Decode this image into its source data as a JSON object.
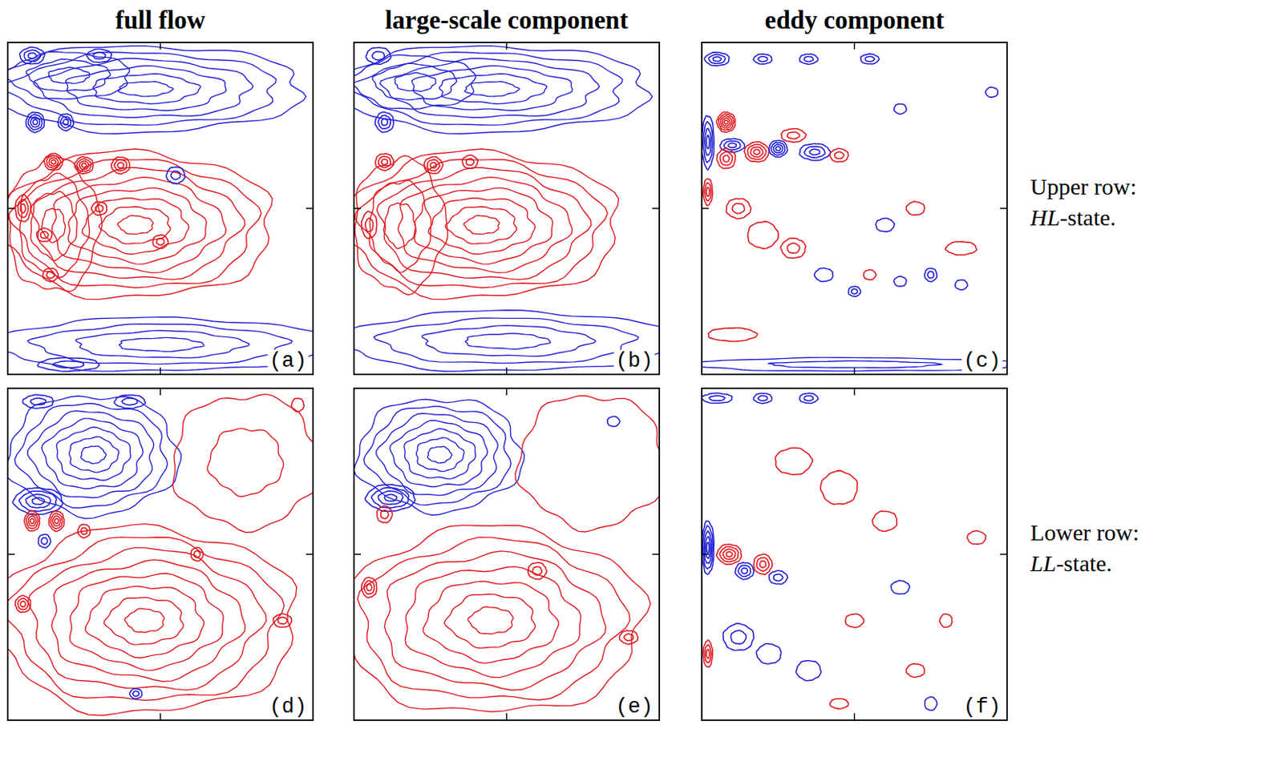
{
  "chart_data": [
    {
      "type": "contour",
      "title": "full flow",
      "panel_label": "(a)",
      "xlim": [
        0,
        1
      ],
      "ylim": [
        0,
        1
      ],
      "xticks": [
        0.5
      ],
      "yticks": [
        0.5
      ],
      "tick_labels": false,
      "contour_interval": 0.15,
      "colors": [
        "#1f1fd8",
        "#e0161c"
      ],
      "features": [
        {
          "x": 0.45,
          "y": 0.86,
          "rx": 0.52,
          "ry": 0.13,
          "value": -0.9
        },
        {
          "x": 0.2,
          "y": 0.9,
          "rx": 0.2,
          "ry": 0.07,
          "value": -0.45
        },
        {
          "x": 0.42,
          "y": 0.45,
          "rx": 0.45,
          "ry": 0.22,
          "value": 1.2
        },
        {
          "x": 0.15,
          "y": 0.45,
          "rx": 0.15,
          "ry": 0.2,
          "value": 0.6
        },
        {
          "x": 0.5,
          "y": 0.09,
          "rx": 0.55,
          "ry": 0.08,
          "value": -0.6
        },
        {
          "x": 0.09,
          "y": 0.76,
          "rx": 0.03,
          "ry": 0.03,
          "value": -0.6
        },
        {
          "x": 0.19,
          "y": 0.76,
          "rx": 0.025,
          "ry": 0.025,
          "value": -0.45
        },
        {
          "x": 0.15,
          "y": 0.64,
          "rx": 0.03,
          "ry": 0.025,
          "value": 0.6
        },
        {
          "x": 0.25,
          "y": 0.63,
          "rx": 0.03,
          "ry": 0.025,
          "value": 0.6
        },
        {
          "x": 0.37,
          "y": 0.63,
          "rx": 0.03,
          "ry": 0.025,
          "value": 0.45
        },
        {
          "x": 0.55,
          "y": 0.6,
          "rx": 0.03,
          "ry": 0.025,
          "value": -0.3
        },
        {
          "x": 0.05,
          "y": 0.5,
          "rx": 0.025,
          "ry": 0.04,
          "value": 0.45
        },
        {
          "x": 0.12,
          "y": 0.42,
          "rx": 0.025,
          "ry": 0.02,
          "value": 0.3
        },
        {
          "x": 0.3,
          "y": 0.5,
          "rx": 0.025,
          "ry": 0.02,
          "value": 0.3
        },
        {
          "x": 0.14,
          "y": 0.3,
          "rx": 0.025,
          "ry": 0.02,
          "value": 0.3
        },
        {
          "x": 0.08,
          "y": 0.96,
          "rx": 0.04,
          "ry": 0.025,
          "value": -0.45
        },
        {
          "x": 0.3,
          "y": 0.96,
          "rx": 0.04,
          "ry": 0.02,
          "value": -0.3
        },
        {
          "x": 0.2,
          "y": 0.03,
          "rx": 0.1,
          "ry": 0.02,
          "value": -0.3
        },
        {
          "x": 0.5,
          "y": 0.4,
          "rx": 0.025,
          "ry": 0.02,
          "value": 0.3
        }
      ]
    },
    {
      "type": "contour",
      "title": "large-scale component",
      "panel_label": "(b)",
      "xlim": [
        0,
        1
      ],
      "ylim": [
        0,
        1
      ],
      "xticks": [
        0.5
      ],
      "yticks": [
        0.5
      ],
      "tick_labels": false,
      "contour_interval": 0.15,
      "colors": [
        "#1f1fd8",
        "#e0161c"
      ],
      "features": [
        {
          "x": 0.45,
          "y": 0.86,
          "rx": 0.52,
          "ry": 0.13,
          "value": -0.9
        },
        {
          "x": 0.2,
          "y": 0.88,
          "rx": 0.2,
          "ry": 0.08,
          "value": -0.45
        },
        {
          "x": 0.42,
          "y": 0.45,
          "rx": 0.45,
          "ry": 0.22,
          "value": 1.2
        },
        {
          "x": 0.15,
          "y": 0.45,
          "rx": 0.15,
          "ry": 0.2,
          "value": 0.45
        },
        {
          "x": 0.5,
          "y": 0.1,
          "rx": 0.55,
          "ry": 0.09,
          "value": -0.6
        },
        {
          "x": 0.1,
          "y": 0.76,
          "rx": 0.03,
          "ry": 0.03,
          "value": -0.45
        },
        {
          "x": 0.1,
          "y": 0.64,
          "rx": 0.03,
          "ry": 0.025,
          "value": 0.45
        },
        {
          "x": 0.26,
          "y": 0.63,
          "rx": 0.03,
          "ry": 0.025,
          "value": 0.45
        },
        {
          "x": 0.38,
          "y": 0.64,
          "rx": 0.025,
          "ry": 0.02,
          "value": 0.3
        },
        {
          "x": 0.05,
          "y": 0.45,
          "rx": 0.025,
          "ry": 0.04,
          "value": 0.3
        },
        {
          "x": 0.08,
          "y": 0.96,
          "rx": 0.04,
          "ry": 0.025,
          "value": -0.3
        }
      ]
    },
    {
      "type": "contour",
      "title": "eddy component",
      "panel_label": "(c)",
      "annotations": [
        "Upper row:",
        "HL-state."
      ],
      "xlim": [
        0,
        1
      ],
      "ylim": [
        0,
        1
      ],
      "xticks": [
        0.5
      ],
      "yticks": [
        0.5
      ],
      "tick_labels": false,
      "contour_interval": 0.15,
      "colors": [
        "#1f1fd8",
        "#e0161c"
      ],
      "features": [
        {
          "x": 0.08,
          "y": 0.76,
          "rx": 0.03,
          "ry": 0.03,
          "value": 0.75
        },
        {
          "x": 0.05,
          "y": 0.95,
          "rx": 0.04,
          "ry": 0.02,
          "value": -0.45
        },
        {
          "x": 0.2,
          "y": 0.95,
          "rx": 0.03,
          "ry": 0.015,
          "value": -0.3
        },
        {
          "x": 0.35,
          "y": 0.95,
          "rx": 0.03,
          "ry": 0.015,
          "value": -0.3
        },
        {
          "x": 0.55,
          "y": 0.95,
          "rx": 0.03,
          "ry": 0.015,
          "value": -0.3
        },
        {
          "x": 0.02,
          "y": 0.7,
          "rx": 0.02,
          "ry": 0.08,
          "value": -0.6
        },
        {
          "x": 0.1,
          "y": 0.69,
          "rx": 0.04,
          "ry": 0.02,
          "value": -0.45
        },
        {
          "x": 0.18,
          "y": 0.67,
          "rx": 0.04,
          "ry": 0.03,
          "value": 0.6
        },
        {
          "x": 0.08,
          "y": 0.65,
          "rx": 0.03,
          "ry": 0.03,
          "value": 0.45
        },
        {
          "x": 0.25,
          "y": 0.68,
          "rx": 0.03,
          "ry": 0.025,
          "value": -0.6
        },
        {
          "x": 0.37,
          "y": 0.67,
          "rx": 0.05,
          "ry": 0.025,
          "value": -0.45
        },
        {
          "x": 0.3,
          "y": 0.72,
          "rx": 0.04,
          "ry": 0.02,
          "value": 0.3
        },
        {
          "x": 0.45,
          "y": 0.66,
          "rx": 0.03,
          "ry": 0.02,
          "value": 0.3
        },
        {
          "x": 0.02,
          "y": 0.55,
          "rx": 0.015,
          "ry": 0.04,
          "value": 0.45
        },
        {
          "x": 0.12,
          "y": 0.5,
          "rx": 0.04,
          "ry": 0.03,
          "value": 0.3
        },
        {
          "x": 0.2,
          "y": 0.42,
          "rx": 0.05,
          "ry": 0.04,
          "value": 0.15
        },
        {
          "x": 0.3,
          "y": 0.38,
          "rx": 0.04,
          "ry": 0.03,
          "value": 0.3
        },
        {
          "x": 0.4,
          "y": 0.3,
          "rx": 0.03,
          "ry": 0.02,
          "value": -0.15
        },
        {
          "x": 0.5,
          "y": 0.25,
          "rx": 0.02,
          "ry": 0.015,
          "value": -0.3
        },
        {
          "x": 0.55,
          "y": 0.3,
          "rx": 0.02,
          "ry": 0.015,
          "value": 0.15
        },
        {
          "x": 0.65,
          "y": 0.28,
          "rx": 0.02,
          "ry": 0.015,
          "value": -0.15
        },
        {
          "x": 0.75,
          "y": 0.3,
          "rx": 0.02,
          "ry": 0.02,
          "value": -0.3
        },
        {
          "x": 0.85,
          "y": 0.27,
          "rx": 0.02,
          "ry": 0.015,
          "value": -0.15
        },
        {
          "x": 0.6,
          "y": 0.45,
          "rx": 0.03,
          "ry": 0.02,
          "value": -0.15
        },
        {
          "x": 0.7,
          "y": 0.5,
          "rx": 0.03,
          "ry": 0.02,
          "value": 0.15
        },
        {
          "x": 0.85,
          "y": 0.38,
          "rx": 0.05,
          "ry": 0.02,
          "value": 0.15
        },
        {
          "x": 0.1,
          "y": 0.12,
          "rx": 0.08,
          "ry": 0.02,
          "value": 0.15
        },
        {
          "x": 0.5,
          "y": 0.03,
          "rx": 0.55,
          "ry": 0.02,
          "value": -0.3
        },
        {
          "x": 0.95,
          "y": 0.85,
          "rx": 0.02,
          "ry": 0.015,
          "value": -0.15
        },
        {
          "x": 0.65,
          "y": 0.8,
          "rx": 0.02,
          "ry": 0.015,
          "value": -0.15
        }
      ]
    },
    {
      "type": "contour",
      "panel_label": "(d)",
      "xlim": [
        0,
        1
      ],
      "ylim": [
        0,
        1
      ],
      "xticks": [
        0.5
      ],
      "yticks": [
        0.5
      ],
      "tick_labels": false,
      "contour_interval": 0.15,
      "colors": [
        "#1f1fd8",
        "#e0161c"
      ],
      "features": [
        {
          "x": 0.28,
          "y": 0.8,
          "rx": 0.28,
          "ry": 0.18,
          "value": -1.05
        },
        {
          "x": 0.1,
          "y": 0.66,
          "rx": 0.08,
          "ry": 0.04,
          "value": -0.6
        },
        {
          "x": 0.45,
          "y": 0.3,
          "rx": 0.5,
          "ry": 0.28,
          "value": 1.2
        },
        {
          "x": 0.78,
          "y": 0.78,
          "rx": 0.24,
          "ry": 0.2,
          "value": 0.3
        },
        {
          "x": 0.08,
          "y": 0.6,
          "rx": 0.025,
          "ry": 0.03,
          "value": 0.6
        },
        {
          "x": 0.16,
          "y": 0.6,
          "rx": 0.025,
          "ry": 0.03,
          "value": 0.6
        },
        {
          "x": 0.25,
          "y": 0.57,
          "rx": 0.02,
          "ry": 0.02,
          "value": 0.3
        },
        {
          "x": 0.12,
          "y": 0.54,
          "rx": 0.02,
          "ry": 0.02,
          "value": -0.3
        },
        {
          "x": 0.05,
          "y": 0.35,
          "rx": 0.025,
          "ry": 0.025,
          "value": 0.45
        },
        {
          "x": 0.1,
          "y": 0.96,
          "rx": 0.05,
          "ry": 0.02,
          "value": -0.3
        },
        {
          "x": 0.4,
          "y": 0.96,
          "rx": 0.05,
          "ry": 0.02,
          "value": -0.3
        },
        {
          "x": 0.62,
          "y": 0.5,
          "rx": 0.02,
          "ry": 0.02,
          "value": 0.3
        },
        {
          "x": 0.9,
          "y": 0.3,
          "rx": 0.03,
          "ry": 0.02,
          "value": 0.3
        },
        {
          "x": 0.42,
          "y": 0.08,
          "rx": 0.02,
          "ry": 0.015,
          "value": -0.3
        },
        {
          "x": 0.95,
          "y": 0.95,
          "rx": 0.02,
          "ry": 0.02,
          "value": 0.15
        }
      ]
    },
    {
      "type": "contour",
      "panel_label": "(e)",
      "xlim": [
        0,
        1
      ],
      "ylim": [
        0,
        1
      ],
      "xticks": [
        0.5
      ],
      "yticks": [
        0.5
      ],
      "tick_labels": false,
      "contour_interval": 0.15,
      "colors": [
        "#1f1fd8",
        "#e0161c"
      ],
      "features": [
        {
          "x": 0.28,
          "y": 0.8,
          "rx": 0.27,
          "ry": 0.17,
          "value": -1.05
        },
        {
          "x": 0.12,
          "y": 0.67,
          "rx": 0.08,
          "ry": 0.04,
          "value": -0.6
        },
        {
          "x": 0.45,
          "y": 0.3,
          "rx": 0.5,
          "ry": 0.28,
          "value": 1.05
        },
        {
          "x": 0.78,
          "y": 0.78,
          "rx": 0.24,
          "ry": 0.2,
          "value": 0.15
        },
        {
          "x": 0.1,
          "y": 0.62,
          "rx": 0.025,
          "ry": 0.025,
          "value": 0.3
        },
        {
          "x": 0.05,
          "y": 0.4,
          "rx": 0.025,
          "ry": 0.03,
          "value": 0.45
        },
        {
          "x": 0.9,
          "y": 0.25,
          "rx": 0.03,
          "ry": 0.02,
          "value": 0.3
        },
        {
          "x": 0.6,
          "y": 0.45,
          "rx": 0.03,
          "ry": 0.025,
          "value": 0.3
        },
        {
          "x": 0.85,
          "y": 0.9,
          "rx": 0.02,
          "ry": 0.015,
          "value": -0.15
        }
      ]
    },
    {
      "type": "contour",
      "panel_label": "(f)",
      "annotations": [
        "Lower row:",
        "LL-state."
      ],
      "xlim": [
        0,
        1
      ],
      "ylim": [
        0,
        1
      ],
      "xticks": [
        0.5
      ],
      "yticks": [
        0.5
      ],
      "tick_labels": false,
      "contour_interval": 0.15,
      "colors": [
        "#1f1fd8",
        "#e0161c"
      ],
      "features": [
        {
          "x": 0.02,
          "y": 0.52,
          "rx": 0.02,
          "ry": 0.08,
          "value": -0.75
        },
        {
          "x": 0.09,
          "y": 0.5,
          "rx": 0.04,
          "ry": 0.03,
          "value": 0.6
        },
        {
          "x": 0.14,
          "y": 0.45,
          "rx": 0.03,
          "ry": 0.025,
          "value": -0.45
        },
        {
          "x": 0.2,
          "y": 0.47,
          "rx": 0.03,
          "ry": 0.03,
          "value": 0.45
        },
        {
          "x": 0.25,
          "y": 0.43,
          "rx": 0.03,
          "ry": 0.02,
          "value": -0.3
        },
        {
          "x": 0.05,
          "y": 0.97,
          "rx": 0.05,
          "ry": 0.015,
          "value": -0.3
        },
        {
          "x": 0.2,
          "y": 0.97,
          "rx": 0.03,
          "ry": 0.015,
          "value": -0.3
        },
        {
          "x": 0.35,
          "y": 0.97,
          "rx": 0.03,
          "ry": 0.015,
          "value": -0.3
        },
        {
          "x": 0.3,
          "y": 0.78,
          "rx": 0.06,
          "ry": 0.04,
          "value": 0.15
        },
        {
          "x": 0.45,
          "y": 0.7,
          "rx": 0.06,
          "ry": 0.05,
          "value": 0.15
        },
        {
          "x": 0.6,
          "y": 0.6,
          "rx": 0.04,
          "ry": 0.03,
          "value": 0.15
        },
        {
          "x": 0.02,
          "y": 0.2,
          "rx": 0.015,
          "ry": 0.04,
          "value": 0.45
        },
        {
          "x": 0.12,
          "y": 0.25,
          "rx": 0.05,
          "ry": 0.04,
          "value": -0.3
        },
        {
          "x": 0.22,
          "y": 0.2,
          "rx": 0.04,
          "ry": 0.03,
          "value": -0.15
        },
        {
          "x": 0.35,
          "y": 0.15,
          "rx": 0.04,
          "ry": 0.03,
          "value": -0.15
        },
        {
          "x": 0.5,
          "y": 0.3,
          "rx": 0.03,
          "ry": 0.02,
          "value": 0.15
        },
        {
          "x": 0.65,
          "y": 0.4,
          "rx": 0.03,
          "ry": 0.02,
          "value": -0.15
        },
        {
          "x": 0.8,
          "y": 0.3,
          "rx": 0.02,
          "ry": 0.02,
          "value": 0.15
        },
        {
          "x": 0.45,
          "y": 0.05,
          "rx": 0.03,
          "ry": 0.015,
          "value": 0.15
        },
        {
          "x": 0.75,
          "y": 0.05,
          "rx": 0.02,
          "ry": 0.02,
          "value": -0.15
        },
        {
          "x": 0.9,
          "y": 0.55,
          "rx": 0.03,
          "ry": 0.02,
          "value": 0.15
        },
        {
          "x": 0.7,
          "y": 0.15,
          "rx": 0.03,
          "ry": 0.02,
          "value": 0.15
        }
      ]
    }
  ]
}
